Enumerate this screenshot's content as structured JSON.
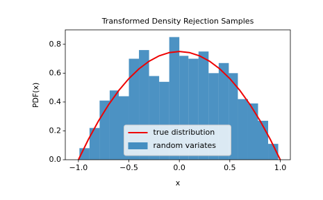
{
  "chart_data": {
    "type": "histogram",
    "title": "Transformed Density Rejection Samples",
    "x_label": "x",
    "y_label": "PDF(x)",
    "xlim": [
      -1.13,
      1.1
    ],
    "ylim": [
      0,
      0.9
    ],
    "xticks": [
      {
        "value": -1.0,
        "label": "−1.0"
      },
      {
        "value": -0.5,
        "label": "−0.5"
      },
      {
        "value": 0,
        "label": "0.0"
      },
      {
        "value": 0.5,
        "label": "0.5"
      },
      {
        "value": 1.0,
        "label": "1.0"
      }
    ],
    "yticks": [
      {
        "value": 0,
        "label": "0.0"
      },
      0.2,
      0.4,
      0.6,
      0.8
    ],
    "legend": "lower center",
    "series": [
      {
        "name": "true distribution",
        "type": "line",
        "color": "#ee0000",
        "x": [
          -1.0,
          -0.9,
          -0.8,
          -0.7,
          -0.6,
          -0.5,
          -0.4,
          -0.3,
          -0.2,
          -0.1,
          0,
          0.1,
          0.2,
          0.3,
          0.4,
          0.5,
          0.6,
          0.7,
          0.8,
          0.9,
          1.0
        ],
        "values": [
          0,
          0.1425,
          0.27,
          0.3825,
          0.48,
          0.5625,
          0.63,
          0.6825,
          0.72,
          0.7425,
          0.75,
          0.7425,
          0.72,
          0.6825,
          0.63,
          0.5625,
          0.48,
          0.3825,
          0.27,
          0.1425,
          0
        ]
      },
      {
        "name": "random variates",
        "type": "histogram",
        "color": "#1f77b4",
        "bins": [
          -0.99,
          -0.89,
          -0.79,
          -0.69,
          -0.6,
          -0.5,
          -0.4,
          -0.3,
          -0.2,
          -0.1,
          0.0,
          0.09,
          0.19,
          0.29,
          0.39,
          0.49,
          0.58,
          0.68,
          0.78,
          0.88,
          0.98
        ],
        "values": [
          0.08,
          0.22,
          0.41,
          0.48,
          0.44,
          0.7,
          0.76,
          0.58,
          0.54,
          0.85,
          0.72,
          0.7,
          0.75,
          0.6,
          0.67,
          0.6,
          0.42,
          0.39,
          0.27,
          0.11
        ]
      }
    ]
  }
}
